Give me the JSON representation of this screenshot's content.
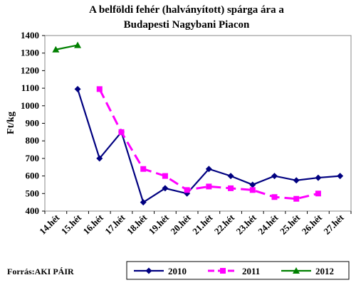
{
  "chart_data": {
    "type": "line",
    "title_line1": "A belföldi fehér (halványított) spárga ára a",
    "title_line2": "Budapesti Nagybani Piacon",
    "ylabel": "Ft/kg",
    "ylim": [
      400,
      1400
    ],
    "yticks": [
      400,
      500,
      600,
      700,
      800,
      900,
      1000,
      1100,
      1200,
      1300,
      1400
    ],
    "categories": [
      "14.hét",
      "15.hét",
      "16.hét",
      "17.hét",
      "18.hét",
      "19.hét",
      "20.hét",
      "21.hét",
      "22.hét",
      "23.hét",
      "24.hét",
      "25.hét",
      "26.hét",
      "27.hét"
    ],
    "grid": false,
    "legend_position": "bottom-right",
    "series": [
      {
        "name": "2010",
        "color": "#000080",
        "marker": "diamond",
        "dash": "solid",
        "values": [
          null,
          1095,
          700,
          850,
          450,
          530,
          500,
          640,
          600,
          550,
          600,
          575,
          590,
          600
        ]
      },
      {
        "name": "2011",
        "color": "#ff00ff",
        "marker": "square",
        "dash": "dashed",
        "values": [
          null,
          null,
          1095,
          850,
          640,
          600,
          520,
          540,
          530,
          520,
          480,
          470,
          500,
          null
        ]
      },
      {
        "name": "2012",
        "color": "#008000",
        "marker": "triangle",
        "dash": "solid",
        "values": [
          1320,
          1345,
          null,
          null,
          null,
          null,
          null,
          null,
          null,
          null,
          null,
          null,
          null,
          null
        ]
      }
    ],
    "source": "Forrás:AKI PÁIR"
  }
}
